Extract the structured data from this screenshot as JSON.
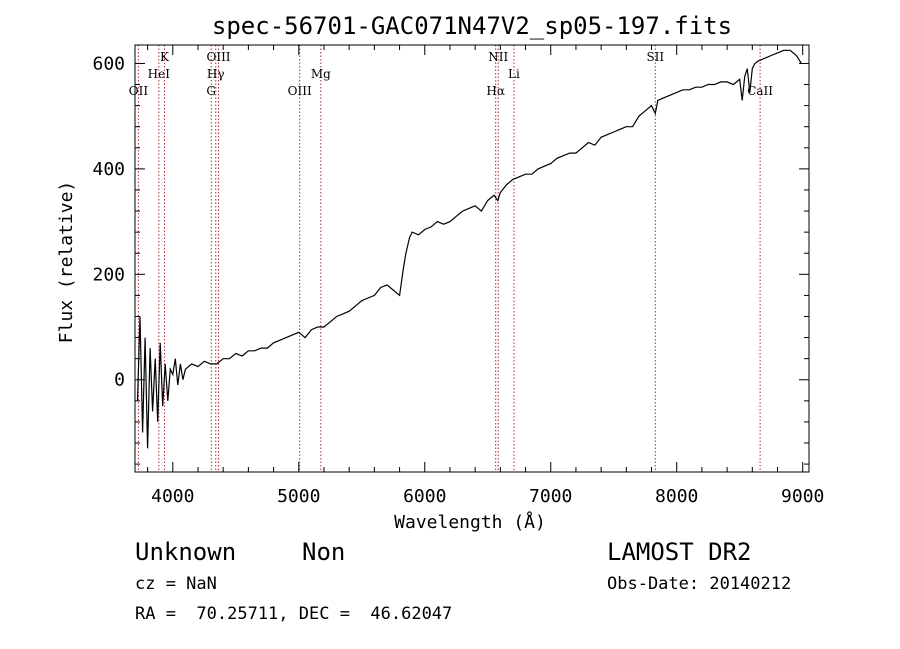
{
  "chart_data": {
    "type": "line",
    "title": "spec-56701-GAC071N47V2_sp05-197.fits",
    "xlabel": "Wavelength (Å)",
    "ylabel": "Flux (relative)",
    "xlim": [
      3700,
      9050
    ],
    "ylim": [
      -175,
      635
    ],
    "xticks": [
      4000,
      5000,
      6000,
      7000,
      8000,
      9000
    ],
    "yticks": [
      0,
      200,
      400,
      600
    ],
    "line_color": "#000000",
    "marker_color": "#b03030",
    "grid": false,
    "series": [
      {
        "x": [
          3720,
          3740,
          3760,
          3780,
          3800,
          3820,
          3840,
          3860,
          3880,
          3900,
          3920,
          3940,
          3960,
          3980,
          4000,
          4020,
          4040,
          4060,
          4080,
          4100,
          4150,
          4200,
          4250,
          4300,
          4350,
          4400,
          4450,
          4500,
          4550,
          4600,
          4650,
          4700,
          4750,
          4800,
          4850,
          4900,
          4950,
          5000,
          5050,
          5100,
          5150,
          5200,
          5250,
          5300,
          5350,
          5400,
          5450,
          5500,
          5550,
          5600,
          5650,
          5700,
          5750,
          5800,
          5830,
          5850,
          5880,
          5900,
          5950,
          6000,
          6050,
          6100,
          6150,
          6200,
          6250,
          6300,
          6350,
          6400,
          6450,
          6500,
          6550,
          6580,
          6600,
          6650,
          6700,
          6750,
          6800,
          6850,
          6900,
          6950,
          7000,
          7050,
          7100,
          7150,
          7200,
          7250,
          7300,
          7350,
          7400,
          7450,
          7500,
          7550,
          7600,
          7650,
          7700,
          7750,
          7800,
          7830,
          7850,
          7900,
          7950,
          8000,
          8050,
          8100,
          8150,
          8200,
          8250,
          8300,
          8350,
          8400,
          8450,
          8500,
          8520,
          8540,
          8560,
          8580,
          8600,
          8620,
          8650,
          8700,
          8750,
          8800,
          8850,
          8900,
          8950,
          8990
        ],
        "y": [
          -40,
          120,
          -100,
          80,
          -130,
          60,
          -60,
          40,
          -80,
          70,
          -50,
          30,
          -40,
          20,
          10,
          40,
          -10,
          30,
          0,
          20,
          30,
          25,
          35,
          30,
          30,
          40,
          40,
          50,
          45,
          55,
          55,
          60,
          60,
          70,
          75,
          80,
          85,
          90,
          80,
          95,
          100,
          100,
          110,
          120,
          125,
          130,
          140,
          150,
          155,
          160,
          175,
          180,
          170,
          160,
          210,
          240,
          270,
          280,
          275,
          285,
          290,
          300,
          295,
          300,
          310,
          320,
          325,
          330,
          320,
          340,
          350,
          340,
          355,
          370,
          380,
          385,
          390,
          390,
          400,
          405,
          410,
          420,
          425,
          430,
          430,
          440,
          450,
          445,
          460,
          465,
          470,
          475,
          480,
          480,
          500,
          510,
          520,
          505,
          530,
          535,
          540,
          545,
          550,
          550,
          555,
          555,
          560,
          560,
          565,
          565,
          560,
          570,
          530,
          575,
          590,
          545,
          590,
          600,
          605,
          610,
          615,
          620,
          625,
          625,
          615,
          600
        ]
      }
    ],
    "lines": [
      {
        "name": "OII",
        "x": 3727,
        "row": 3
      },
      {
        "name": "HeI",
        "x": 3889,
        "row": 2
      },
      {
        "name": "K",
        "x": 3934,
        "row": 1
      },
      {
        "name": "G",
        "x": 4305,
        "row": 3
      },
      {
        "name": "Hγ",
        "x": 4341,
        "row": 2
      },
      {
        "name": "OIII",
        "x": 4363,
        "row": 1
      },
      {
        "name": "OIII",
        "x": 5007,
        "row": 3
      },
      {
        "name": "Mg",
        "x": 5175,
        "row": 2
      },
      {
        "name": "Hα",
        "x": 6563,
        "row": 3
      },
      {
        "name": "NII",
        "x": 6583,
        "row": 1
      },
      {
        "name": "Li",
        "x": 6708,
        "row": 2
      },
      {
        "name": "SII",
        "x": 7830,
        "row": 1
      },
      {
        "name": "CaII",
        "x": 8662,
        "row": 3
      }
    ]
  },
  "info": {
    "object_class": "Unknown",
    "subclass": "Non",
    "cz": "cz = NaN",
    "coords": "RA =  70.25711, DEC =  46.62047",
    "survey": "LAMOST DR2",
    "obs_date": "Obs-Date: 20140212"
  }
}
